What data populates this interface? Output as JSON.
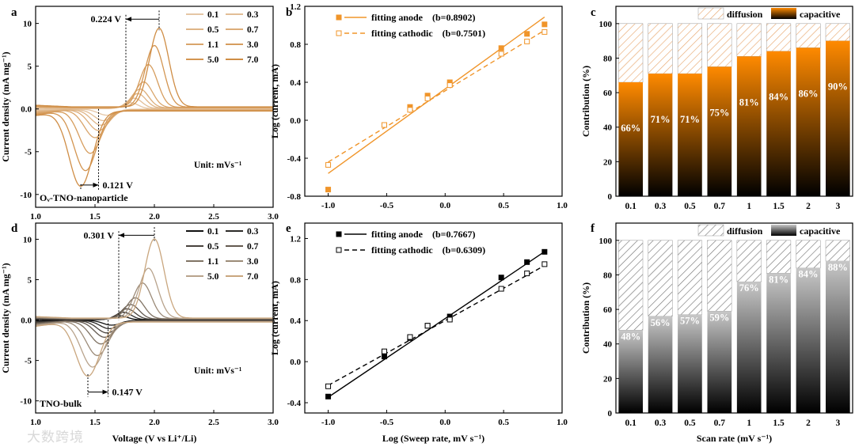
{
  "watermark": "大数跨境",
  "chart_data": [
    {
      "panel": "a",
      "type": "line",
      "xlabel": "",
      "ylabel": "Current density (mA mg⁻¹)",
      "xlim": [
        1.0,
        3.0
      ],
      "ylim": [
        -11.5,
        12
      ],
      "xticks": [
        1.0,
        1.5,
        2.0,
        2.5,
        3.0
      ],
      "yticks": [
        -10,
        -5,
        0,
        5,
        10
      ],
      "colors": [
        "#e5c6a5",
        "#e2be96",
        "#dfb587",
        "#dcad79",
        "#d9a56b",
        "#d69d5e",
        "#d39551",
        "#cf8d45"
      ],
      "legend": [
        "0.1",
        "0.3",
        "0.5",
        "0.7",
        "1.1",
        "3.0",
        "5.0",
        "7.0"
      ],
      "curves": {
        "peak_x": [
          1.8,
          1.83,
          1.86,
          1.88,
          1.91,
          1.95,
          2.0,
          2.04
        ],
        "peak_y": [
          0.7,
          1.2,
          1.7,
          2.2,
          3.0,
          5.0,
          7.2,
          9.2
        ],
        "valley_x": [
          1.6,
          1.57,
          1.55,
          1.53,
          1.5,
          1.46,
          1.42,
          1.38
        ],
        "valley_y": [
          -0.7,
          -1.3,
          -1.8,
          -2.4,
          -3.2,
          -5.0,
          -7.0,
          -8.8
        ]
      },
      "annotations": {
        "top_delta": "0.224 V",
        "bottom_delta": "0.121 V",
        "unit": "Unit: mVs⁻¹",
        "sample": "Oᵥ-TNO-nanoparticle"
      }
    },
    {
      "panel": "b",
      "type": "scatter",
      "xlabel": "",
      "ylabel": "Log (current, mA)",
      "xlim": [
        -1.2,
        1.0
      ],
      "ylim": [
        -0.8,
        1.2
      ],
      "xticks": [
        -1.0,
        -0.5,
        0.0,
        0.5,
        1.0
      ],
      "yticks": [
        -0.8,
        -0.4,
        0.0,
        0.4,
        0.8,
        1.2
      ],
      "color": "#f0952a",
      "x": [
        -1.0,
        -0.52,
        -0.3,
        -0.15,
        0.04,
        0.48,
        0.7,
        0.85
      ],
      "series": [
        {
          "name": "fitting anode　(b=0.8902)",
          "values": [
            -0.73,
            -0.05,
            0.14,
            0.26,
            0.4,
            0.76,
            0.91,
            1.01
          ],
          "slope": 0.8902,
          "intercept": 0.33
        },
        {
          "name": "fitting cathodic　(b=0.7501)",
          "values": [
            -0.47,
            -0.05,
            0.11,
            0.23,
            0.37,
            0.7,
            0.83,
            0.93
          ],
          "slope": 0.7501,
          "intercept": 0.31
        }
      ]
    },
    {
      "panel": "c",
      "type": "bar",
      "xlabel": "",
      "ylabel": "Contribution (%)",
      "ylim": [
        0,
        110
      ],
      "yticks": [
        0,
        20,
        40,
        60,
        80,
        100
      ],
      "categories": [
        "0.1",
        "0.3",
        "0.5",
        "0.7",
        "1",
        "1.5",
        "2",
        "3"
      ],
      "values": [
        66,
        71,
        71,
        75,
        81,
        84,
        86,
        90
      ],
      "labels": [
        "66%",
        "71%",
        "71%",
        "75%",
        "81%",
        "84%",
        "86%",
        "90%"
      ],
      "legend": [
        "diffusion",
        "capacitive"
      ],
      "colors": {
        "top": "#ff8a00",
        "bottom": "#000000",
        "hatch": "#e8a870"
      }
    },
    {
      "panel": "d",
      "type": "line",
      "xlabel": "Voltage (V vs Li⁺/Li)",
      "ylabel": "Current density (mA mg⁻¹)",
      "xlim": [
        1.0,
        3.0
      ],
      "ylim": [
        -11.5,
        12
      ],
      "xticks": [
        1.0,
        1.5,
        2.0,
        2.5,
        3.0
      ],
      "yticks": [
        -10,
        -5,
        0,
        5,
        10
      ],
      "colors": [
        "#111111",
        "#2c2a28",
        "#48423c",
        "#645a50",
        "#807364",
        "#9c8b78",
        "#b8a38c",
        "#c9a67e"
      ],
      "legend": [
        "0.1",
        "0.3",
        "0.5",
        "0.7",
        "1.1",
        "3.0",
        "5.0",
        "7.0"
      ],
      "curves": {
        "peak_x": [
          1.71,
          1.74,
          1.77,
          1.8,
          1.84,
          1.9,
          1.95,
          2.0
        ],
        "peak_y": [
          0.5,
          0.9,
          1.3,
          1.8,
          2.6,
          4.4,
          6.2,
          9.8
        ],
        "valley_x": [
          1.64,
          1.62,
          1.6,
          1.58,
          1.55,
          1.52,
          1.48,
          1.44
        ],
        "valley_y": [
          -0.6,
          -1.0,
          -1.5,
          -2.0,
          -2.8,
          -4.2,
          -5.6,
          -6.7
        ]
      },
      "annotations": {
        "top_delta": "0.301 V",
        "bottom_delta": "0.147 V",
        "unit": "Unit: mVs⁻¹",
        "sample": "TNO-bulk"
      }
    },
    {
      "panel": "e",
      "type": "scatter",
      "xlabel": "Log (Sweep rate, mV s⁻¹)",
      "ylabel": "Log (current, mA)",
      "xlim": [
        -1.2,
        1.0
      ],
      "ylim": [
        -0.5,
        1.35
      ],
      "xticks": [
        -1.0,
        -0.5,
        0.0,
        0.5,
        1.0
      ],
      "yticks": [
        -0.4,
        0.0,
        0.4,
        0.8,
        1.2
      ],
      "color": "#000000",
      "x": [
        -1.0,
        -0.52,
        -0.3,
        -0.15,
        0.04,
        0.48,
        0.7,
        0.85
      ],
      "series": [
        {
          "name": "fitting anode　(b=0.7667)",
          "values": [
            -0.34,
            0.05,
            0.23,
            0.35,
            0.44,
            0.82,
            0.97,
            1.07
          ],
          "slope": 0.7667,
          "intercept": 0.42
        },
        {
          "name": "fitting cathodic　(b=0.6309)",
          "values": [
            -0.24,
            0.1,
            0.24,
            0.35,
            0.41,
            0.71,
            0.86,
            0.95
          ],
          "slope": 0.6309,
          "intercept": 0.4
        }
      ]
    },
    {
      "panel": "f",
      "type": "bar",
      "xlabel": "Scan rate (mV s⁻¹)",
      "ylabel": "Contribution (%)",
      "ylim": [
        0,
        110
      ],
      "yticks": [
        0,
        20,
        40,
        60,
        80,
        100
      ],
      "categories": [
        "0.1",
        "0.3",
        "0.5",
        "0.7",
        "1",
        "1.5",
        "2",
        "3"
      ],
      "values": [
        48,
        56,
        57,
        59,
        76,
        81,
        84,
        88
      ],
      "labels": [
        "48%",
        "56%",
        "57%",
        "59%",
        "76%",
        "81%",
        "84%",
        "88%"
      ],
      "legend": [
        "diffusion",
        "capacitive"
      ],
      "colors": {
        "top": "#c8c8c8",
        "bottom": "#000000",
        "hatch": "#777777"
      }
    }
  ]
}
